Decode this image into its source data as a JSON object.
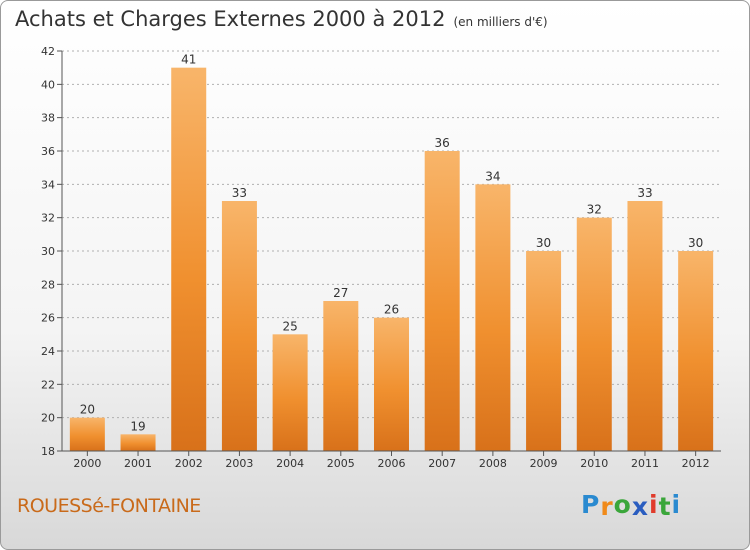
{
  "title": {
    "main": "Achats et Charges Externes 2000 à 2012",
    "unit": "(en milliers d'€)"
  },
  "commune": "ROUESSé-FONTAINE",
  "brand": {
    "letters": [
      "P",
      "r",
      "o",
      "x",
      "i",
      "t",
      "i"
    ],
    "colors": [
      "#2a8ad0",
      "#f08a1a",
      "#3aa63a",
      "#2a5dc0",
      "#e03b2b",
      "#3aa63a",
      "#2a8ad0"
    ]
  },
  "colors": {
    "bar": "#f0902f",
    "bar_light": "#f8b56a",
    "bar_dark": "#d8711a",
    "axis": "#555555",
    "grid": "#b0b0b0"
  },
  "chart_data": {
    "type": "bar",
    "categories": [
      "2000",
      "2001",
      "2002",
      "2003",
      "2004",
      "2005",
      "2006",
      "2007",
      "2008",
      "2009",
      "2010",
      "2011",
      "2012"
    ],
    "values": [
      20,
      19,
      41,
      33,
      25,
      27,
      26,
      36,
      34,
      30,
      32,
      33,
      30
    ],
    "ylim": [
      18,
      42
    ],
    "yticks": [
      18,
      20,
      22,
      24,
      26,
      28,
      30,
      32,
      34,
      36,
      38,
      40,
      42
    ],
    "grid": "horizontal dashed",
    "xlabel": "",
    "ylabel": ""
  }
}
